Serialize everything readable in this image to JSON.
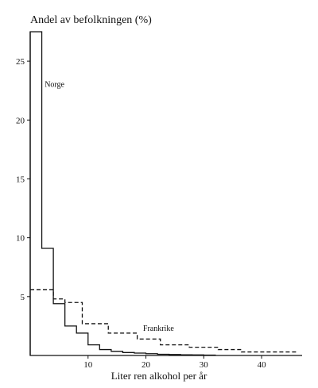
{
  "chart_data": {
    "type": "line",
    "step": true,
    "title": "Andel av befolkningen (%)",
    "xlabel": "Liter ren alkohol per år",
    "ylabel": "",
    "xlim": [
      0,
      47
    ],
    "ylim": [
      0,
      27.5
    ],
    "xticks": [
      10,
      20,
      30,
      40
    ],
    "yticks": [
      5,
      10,
      15,
      20,
      25
    ],
    "grid": false,
    "legend": "none",
    "series": [
      {
        "name": "Norge",
        "style": "solid",
        "x": [
          0,
          2,
          4,
          6,
          8,
          10,
          12,
          14,
          16,
          18,
          20,
          22,
          24,
          26,
          28,
          30,
          32
        ],
        "values": [
          27.5,
          9.1,
          4.4,
          2.5,
          1.9,
          0.9,
          0.5,
          0.35,
          0.25,
          0.2,
          0.15,
          0.1,
          0.08,
          0.06,
          0.05,
          0.03,
          0
        ]
      },
      {
        "name": "Frankrike",
        "style": "dashed",
        "x": [
          0,
          4,
          6,
          9,
          13.5,
          18.5,
          22.5,
          27.5,
          32.5,
          36.5,
          46
        ],
        "values": [
          5.6,
          4.8,
          4.5,
          2.7,
          1.9,
          1.4,
          0.9,
          0.7,
          0.5,
          0.3,
          0.3
        ]
      }
    ],
    "annotations": [
      {
        "text": "Norge",
        "x": 2.5,
        "y": 22.8
      },
      {
        "text": "Frankrike",
        "x": 19.5,
        "y": 2.1
      }
    ]
  }
}
